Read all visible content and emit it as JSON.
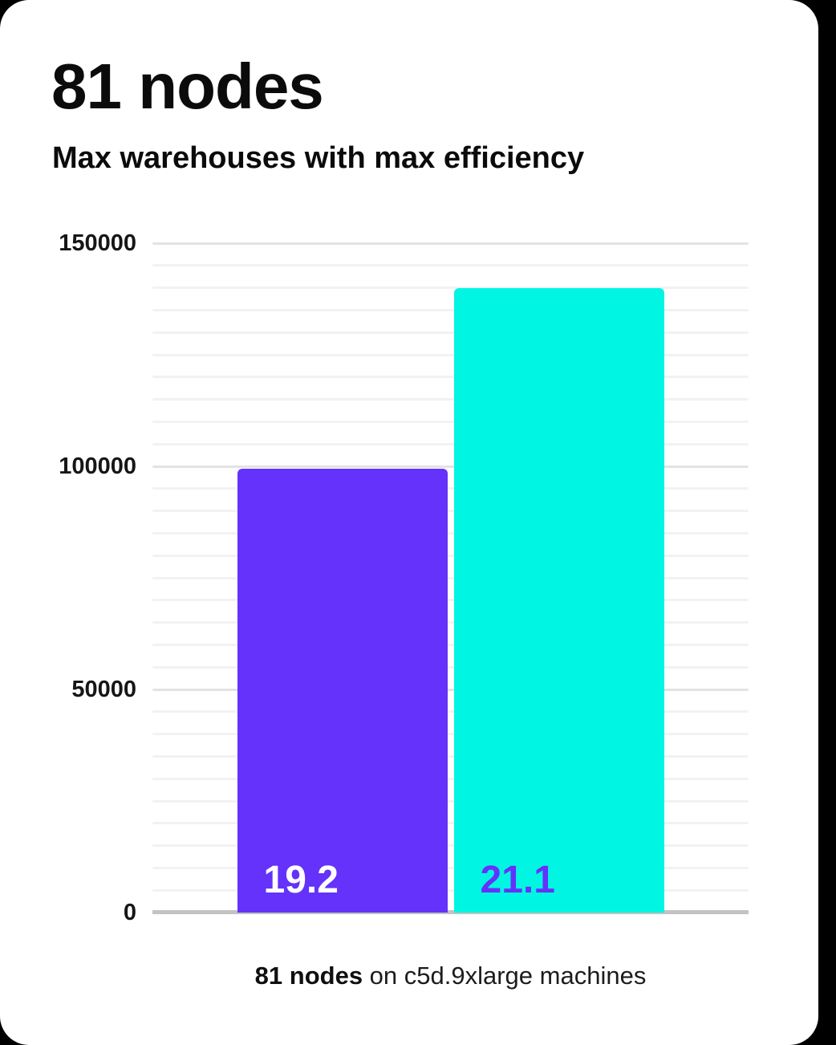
{
  "page": {
    "background_color": "#000000",
    "card_color": "#ffffff"
  },
  "header": {
    "title": "81 nodes",
    "subtitle": "Max warehouses with max efficiency"
  },
  "caption": {
    "bold": "81 nodes",
    "rest": " on c5d.9xlarge machines"
  },
  "chart_data": {
    "type": "bar",
    "title": "81 nodes",
    "subtitle": "Max warehouses with max efficiency",
    "series": [
      {
        "label": "19.2",
        "value": 99500,
        "bar_color": "#6432fa",
        "label_color": "#ffffff"
      },
      {
        "label": "21.1",
        "value": 140000,
        "bar_color": "#00f5e3",
        "label_color": "#6432fa"
      }
    ],
    "ylim": [
      0,
      150000
    ],
    "yticks": [
      0,
      50000,
      100000,
      150000
    ],
    "ytick_labels": [
      "0",
      "50000",
      "100000",
      "150000"
    ],
    "minor_gridline_step": 5000,
    "grid": true,
    "legend": false,
    "grid_color_minor": "#f2f2f2",
    "grid_color_major": "#e3e3e3",
    "baseline_color": "#c3c3c3"
  }
}
